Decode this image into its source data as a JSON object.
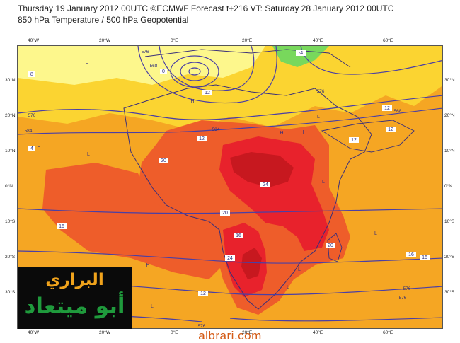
{
  "header": {
    "title_line1": "Thursday 19 January 2012 00UTC ©ECMWF Forecast t+216 VT: Saturday 28 January 2012 00UTC",
    "title_line2": "850 hPa Temperature / 500 hPa Geopotential"
  },
  "map": {
    "type": "weather-map",
    "field_shaded": "850 hPa Temperature",
    "field_contoured": "500 hPa Geopotential",
    "extent": {
      "lon": [
        -50,
        70
      ],
      "lat": [
        -40,
        40
      ]
    },
    "lon_labels": [
      "40°W",
      "20°W",
      "0°E",
      "20°E",
      "40°E",
      "60°E"
    ],
    "lat_labels": [
      "30°N",
      "20°N",
      "10°N",
      "0°N",
      "10°S",
      "20°S",
      "30°S"
    ],
    "temperature_labels": [
      "12",
      "12",
      "12",
      "12",
      "16",
      "16",
      "16",
      "16",
      "20",
      "20",
      "20",
      "24",
      "24",
      "12",
      "12",
      "4",
      "0",
      "8",
      "-4"
    ],
    "geopotential_labels": [
      "576",
      "576",
      "576",
      "576",
      "576",
      "576",
      "584",
      "584",
      "568",
      "568"
    ],
    "pressure_centers": [
      "H",
      "H",
      "H",
      "H",
      "H",
      "H",
      "H",
      "H",
      "L",
      "L",
      "L",
      "L",
      "L",
      "L",
      "L"
    ],
    "colors": {
      "ocean_warm": "#f5a623",
      "land_hot": "#ee5d2a",
      "very_hot": "#e8222c",
      "extreme": "#c7181f",
      "mild": "#fbd431",
      "cool": "#fdf78c",
      "cold": "#78d85c",
      "contour": "#4a3fa5",
      "coast": "#3a2f7a"
    }
  },
  "logo": {
    "line1": "البراري",
    "line2": "أبو ميتعاد"
  },
  "watermark": "albrari.com"
}
